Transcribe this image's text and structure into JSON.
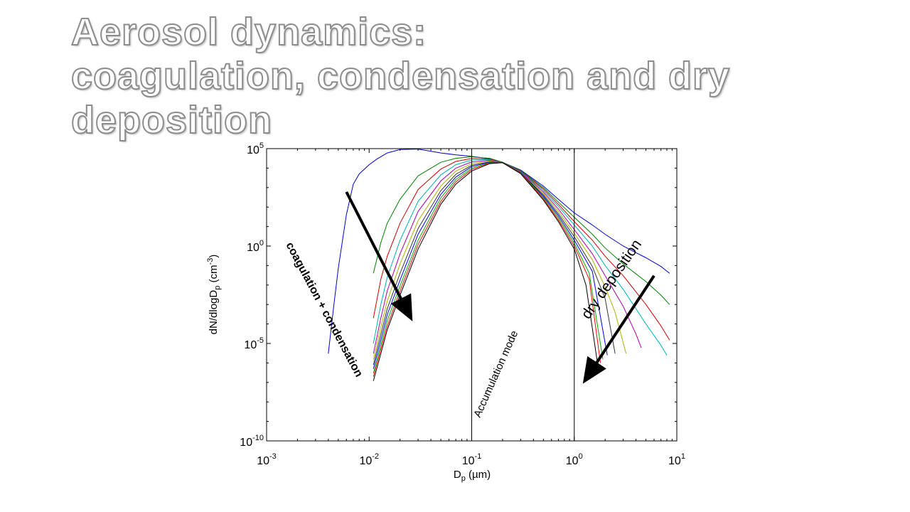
{
  "slide": {
    "title_lines": [
      "Aerosol dynamics:",
      "coagulation, condensation and dry",
      "deposition"
    ]
  },
  "chart_data": {
    "type": "line",
    "xscale": "log",
    "yscale": "log",
    "xlim": [
      0.001,
      10
    ],
    "ylim": [
      1e-10,
      100000
    ],
    "grid": false,
    "legend": "none",
    "x_ticks": [
      {
        "value": 0.001,
        "base": "10",
        "exp": "-3"
      },
      {
        "value": 0.01,
        "base": "10",
        "exp": "-2"
      },
      {
        "value": 0.1,
        "base": "10",
        "exp": "-1"
      },
      {
        "value": 1,
        "base": "10",
        "exp": "0"
      },
      {
        "value": 10,
        "base": "10",
        "exp": "1"
      }
    ],
    "y_ticks": [
      {
        "value": 1e-10,
        "base": "10",
        "exp": "-10"
      },
      {
        "value": 1e-05,
        "base": "10",
        "exp": "-5"
      },
      {
        "value": 1,
        "base": "10",
        "exp": "0"
      },
      {
        "value": 100000,
        "base": "10",
        "exp": "5"
      }
    ],
    "xlabel": {
      "main": "D",
      "sub": "p",
      "tail": " (µm)"
    },
    "ylabel": {
      "part1": "dN/dlogD",
      "sub": "p",
      "part2": " (cm",
      "sup": "-3",
      "part3": ")"
    },
    "vlines": [
      0.1,
      1
    ],
    "annotations": {
      "coagulation": "coagulation + condensation",
      "accumulation": "Accumulation mode",
      "deposition": "dry deposition"
    },
    "arrows": [
      {
        "from": [
          0.006,
          600
        ],
        "to": [
          0.025,
          0.00025
        ]
      },
      {
        "from": [
          6,
          0.03
        ],
        "to": [
          1.3,
          1.5e-07
        ]
      }
    ],
    "series": [
      {
        "color": "#0000cc",
        "x": [
          0.004,
          0.0045,
          0.005,
          0.006,
          0.007,
          0.008,
          0.01,
          0.012,
          0.015,
          0.02,
          0.03,
          0.05,
          0.07,
          0.1,
          0.15,
          0.2,
          0.3,
          0.5,
          0.7,
          1,
          1.5,
          2,
          3,
          5,
          7,
          8.5
        ],
        "y": [
          3e-06,
          0.0007,
          0.07,
          40,
          1500,
          5000,
          15000,
          30000,
          60000,
          90000,
          95000,
          60000,
          48000,
          40000,
          30000,
          20000,
          8000,
          1200,
          250,
          50,
          12,
          4,
          1,
          0.25,
          0.09,
          0.04
        ]
      },
      {
        "color": "#008000",
        "x": [
          0.011,
          0.013,
          0.015,
          0.02,
          0.03,
          0.05,
          0.07,
          0.1,
          0.15,
          0.2,
          0.3,
          0.5,
          0.7,
          1,
          1.5,
          2,
          3,
          5,
          7,
          8.5
        ],
        "y": [
          0.04,
          1.5,
          15,
          250,
          4000,
          20000,
          32000,
          38000,
          32000,
          20000,
          7500,
          1000,
          180,
          30,
          4,
          0.8,
          0.12,
          0.015,
          0.003,
          0.001
        ]
      },
      {
        "color": "#cc0000",
        "x": [
          0.011,
          0.013,
          0.015,
          0.02,
          0.03,
          0.05,
          0.07,
          0.1,
          0.15,
          0.2,
          0.3,
          0.5,
          0.7,
          1,
          1.5,
          2,
          3,
          5,
          7,
          8.5
        ],
        "y": [
          0.0002,
          0.02,
          0.3,
          15,
          800,
          9000,
          22000,
          31000,
          29000,
          19000,
          7000,
          850,
          140,
          18,
          2,
          0.3,
          0.03,
          0.001,
          8e-05,
          1.5e-05
        ]
      },
      {
        "color": "#00b0b0",
        "x": [
          0.011,
          0.013,
          0.015,
          0.02,
          0.03,
          0.05,
          0.07,
          0.1,
          0.15,
          0.2,
          0.3,
          0.5,
          0.7,
          1,
          1.5,
          2,
          3,
          5,
          7,
          8
        ],
        "y": [
          1e-05,
          0.001,
          0.025,
          2,
          200,
          4500,
          15000,
          26000,
          27000,
          19000,
          6800,
          720,
          110,
          12,
          1,
          0.1,
          0.006,
          0.0001,
          8e-06,
          2.5e-06
        ]
      },
      {
        "color": "#aa00aa",
        "x": [
          0.011,
          0.013,
          0.015,
          0.02,
          0.03,
          0.05,
          0.07,
          0.1,
          0.15,
          0.2,
          0.3,
          0.5,
          0.7,
          1,
          1.5,
          2,
          3,
          4,
          4.5
        ],
        "y": [
          3e-06,
          0.0002,
          0.005,
          0.4,
          60,
          2200,
          10000,
          21000,
          25000,
          19000,
          6500,
          600,
          80,
          7,
          0.4,
          0.03,
          0.0008,
          3e-05,
          6e-06
        ]
      },
      {
        "color": "#b0b000",
        "x": [
          0.011,
          0.013,
          0.015,
          0.02,
          0.03,
          0.05,
          0.07,
          0.1,
          0.15,
          0.2,
          0.3,
          0.5,
          0.7,
          1,
          1.5,
          2,
          2.5,
          3.2
        ],
        "y": [
          1.5e-06,
          7e-05,
          0.0015,
          0.12,
          20,
          1200,
          7000,
          17000,
          23000,
          19000,
          6200,
          500,
          60,
          4.5,
          0.2,
          0.008,
          0.0004,
          3e-06
        ]
      },
      {
        "color": "#333333",
        "x": [
          0.011,
          0.013,
          0.015,
          0.02,
          0.03,
          0.05,
          0.07,
          0.1,
          0.15,
          0.2,
          0.3,
          0.5,
          0.7,
          1,
          1.5,
          2,
          2.5
        ],
        "y": [
          8e-07,
          3e-05,
          0.0006,
          0.04,
          8,
          700,
          4800,
          14000,
          21000,
          19000,
          6000,
          420,
          45,
          3,
          0.09,
          0.002,
          3e-06
        ]
      },
      {
        "color": "#0000ff",
        "x": [
          0.011,
          0.013,
          0.015,
          0.02,
          0.03,
          0.05,
          0.07,
          0.1,
          0.15,
          0.2,
          0.3,
          0.5,
          0.7,
          1,
          1.5,
          2.1
        ],
        "y": [
          5e-07,
          1.5e-05,
          0.0003,
          0.018,
          4,
          450,
          3500,
          12000,
          20000,
          19000,
          5800,
          360,
          36,
          2,
          0.05,
          2.5e-06
        ]
      },
      {
        "color": "#00aa00",
        "x": [
          0.011,
          0.013,
          0.015,
          0.02,
          0.03,
          0.05,
          0.07,
          0.1,
          0.15,
          0.2,
          0.3,
          0.5,
          0.7,
          1,
          1.4,
          1.9
        ],
        "y": [
          3e-07,
          8e-06,
          0.00015,
          0.009,
          2,
          300,
          2600,
          10000,
          19000,
          19000,
          5600,
          310,
          28,
          1.4,
          0.04,
          1.5e-06
        ]
      },
      {
        "color": "#ff0000",
        "x": [
          0.011,
          0.013,
          0.015,
          0.02,
          0.03,
          0.05,
          0.07,
          0.1,
          0.15,
          0.2,
          0.3,
          0.5,
          0.7,
          1,
          1.4,
          1.8
        ],
        "y": [
          2e-07,
          5e-06,
          8e-05,
          0.005,
          1.2,
          200,
          2000,
          8500,
          18000,
          19000,
          5400,
          270,
          22,
          1,
          0.02,
          1e-06
        ]
      },
      {
        "color": "#000000",
        "x": [
          0.011,
          0.013,
          0.015,
          0.02,
          0.03,
          0.05,
          0.07,
          0.1,
          0.15,
          0.2,
          0.3,
          0.5,
          0.7,
          1,
          1.3,
          1.7
        ],
        "y": [
          1.2e-07,
          3e-06,
          5e-05,
          0.003,
          0.7,
          140,
          1500,
          7000,
          17000,
          19000,
          5200,
          230,
          18,
          0.7,
          0.01,
          7e-07
        ]
      }
    ]
  }
}
